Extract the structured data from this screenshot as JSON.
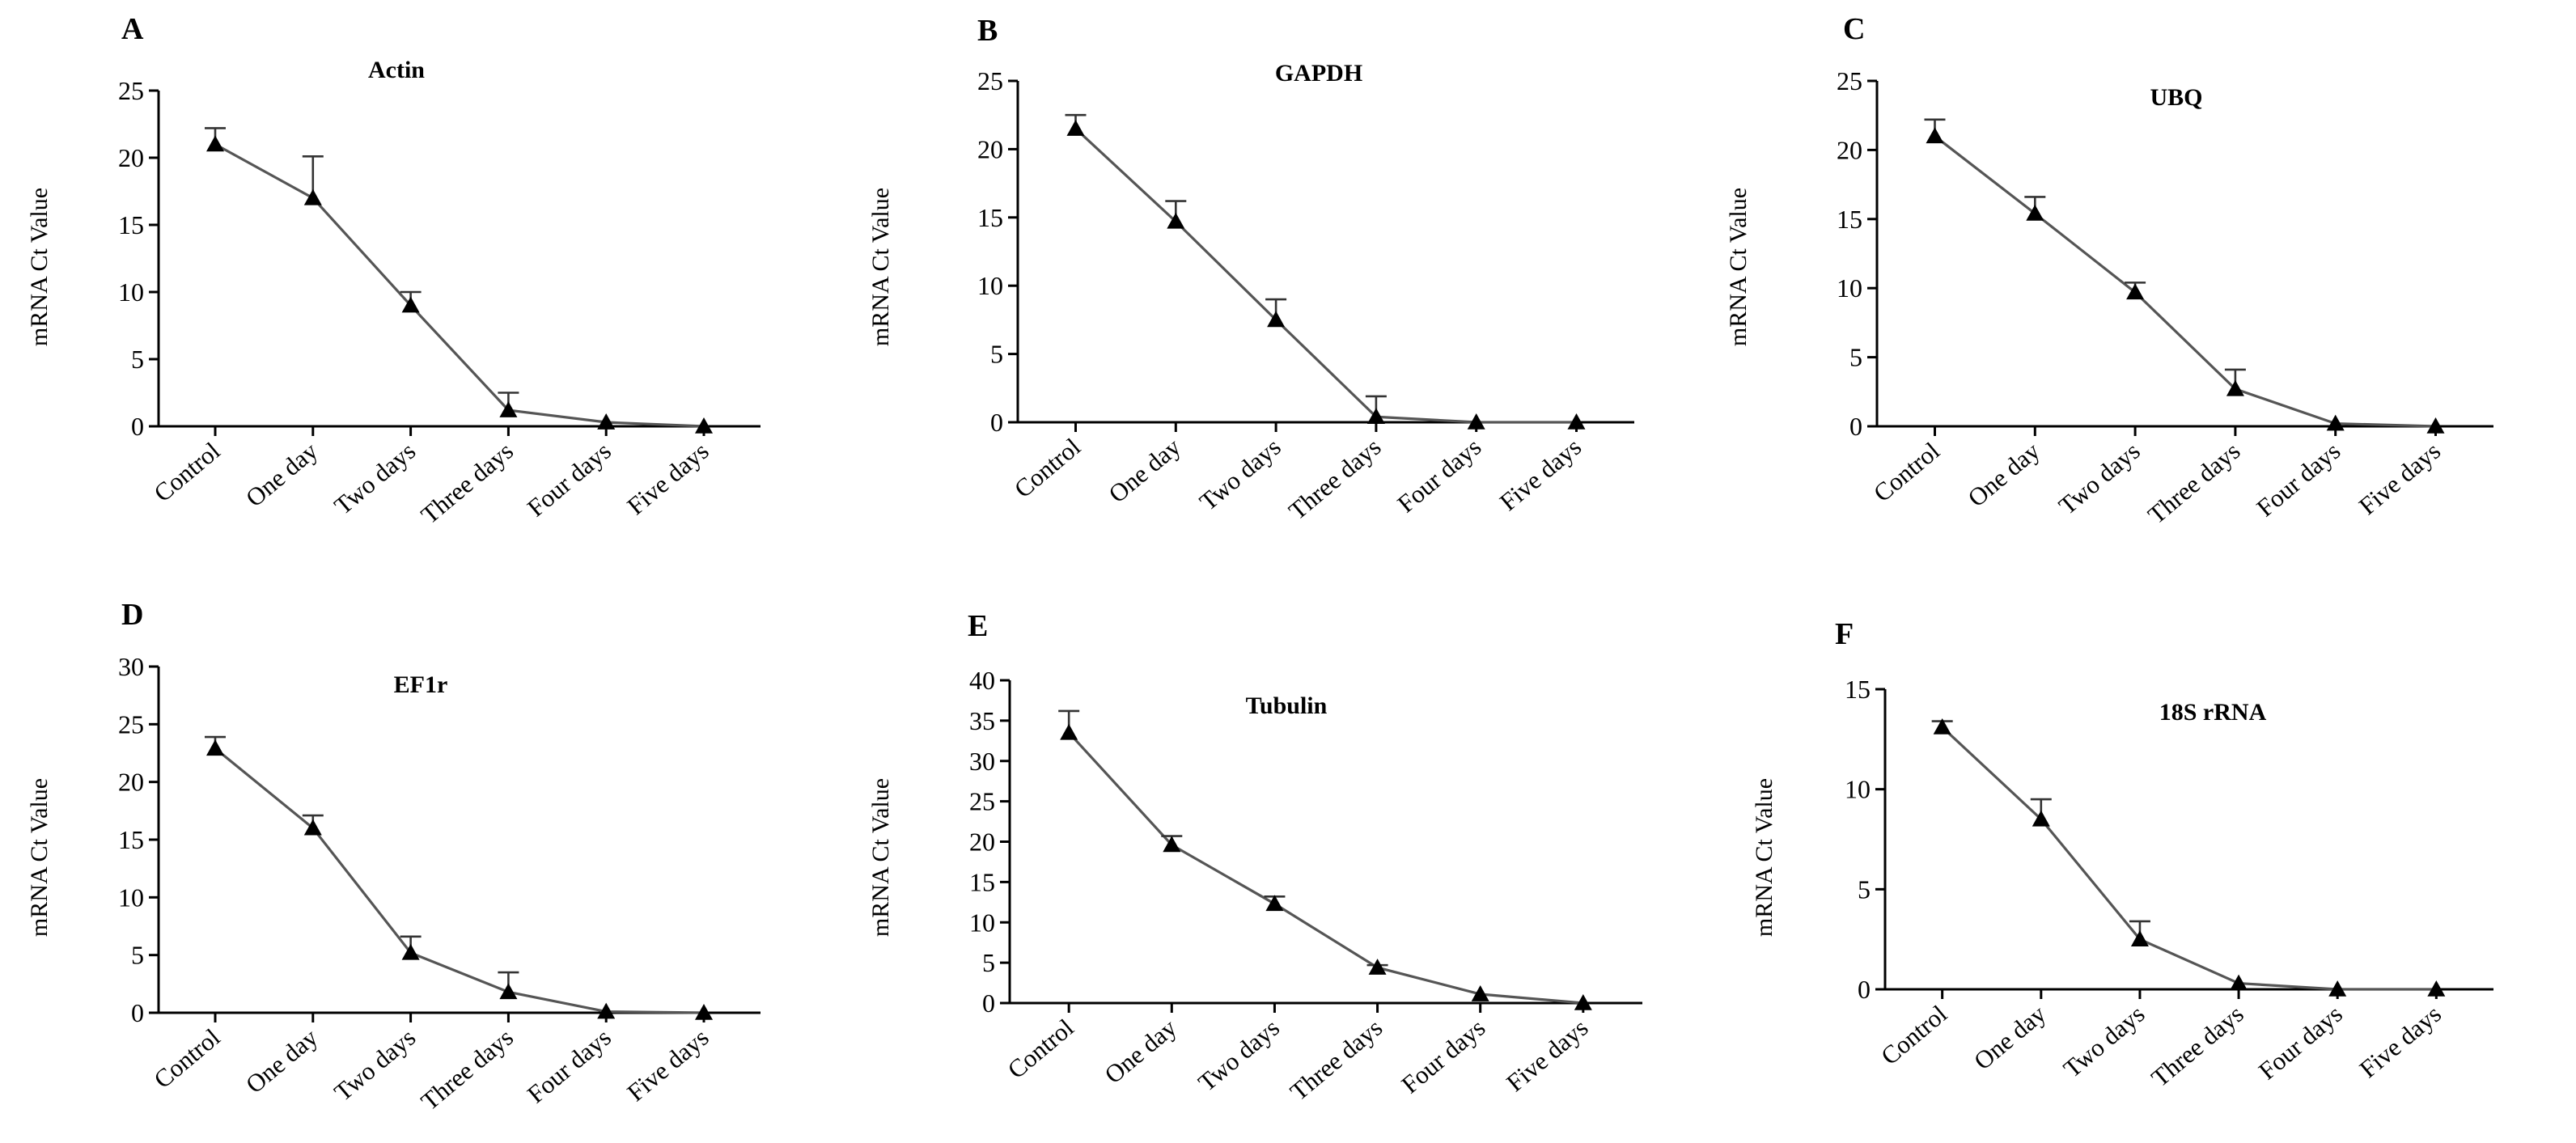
{
  "figure": {
    "ylabel": "mRNA Ct Value",
    "categories": [
      "Control",
      "One day",
      "Two days",
      "Three days",
      "Four days",
      "Five days"
    ]
  },
  "chart_data": [
    {
      "panel": "A",
      "title": "Actin",
      "type": "line",
      "categories": [
        "Control",
        "One day",
        "Two days",
        "Three days",
        "Four days",
        "Five days"
      ],
      "values": [
        21,
        17,
        9,
        1.2,
        0.3,
        0
      ],
      "errors": [
        1.2,
        3.1,
        1,
        1.3,
        0,
        0
      ],
      "ylim": [
        0,
        25
      ],
      "yticks": [
        0,
        5,
        10,
        15,
        20,
        25
      ],
      "xlabel": "",
      "ylabel": "mRNA Ct Value"
    },
    {
      "panel": "B",
      "title": "GAPDH",
      "type": "line",
      "categories": [
        "Control",
        "One day",
        "Two days",
        "Three days",
        "Four days",
        "Five days"
      ],
      "values": [
        21.5,
        14.7,
        7.5,
        0.4,
        0,
        0
      ],
      "errors": [
        1,
        1.5,
        1.5,
        1.5,
        0,
        0
      ],
      "ylim": [
        0,
        25
      ],
      "yticks": [
        0,
        5,
        10,
        15,
        20,
        25
      ],
      "xlabel": "",
      "ylabel": "mRNA Ct Value"
    },
    {
      "panel": "C",
      "title": "UBQ",
      "type": "line",
      "categories": [
        "Control",
        "One day",
        "Two days",
        "Three days",
        "Four days",
        "Five days"
      ],
      "values": [
        21,
        15.4,
        9.7,
        2.7,
        0.2,
        0
      ],
      "errors": [
        1.2,
        1.2,
        0.7,
        1.4,
        0,
        0
      ],
      "ylim": [
        0,
        25
      ],
      "yticks": [
        0,
        5,
        10,
        15,
        20,
        25
      ],
      "xlabel": "",
      "ylabel": "mRNA Ct Value"
    },
    {
      "panel": "D",
      "title": "EF1r",
      "type": "line",
      "categories": [
        "Control",
        "One day",
        "Two days",
        "Three days",
        "Four days",
        "Five days"
      ],
      "values": [
        22.9,
        16,
        5.2,
        1.8,
        0.1,
        0
      ],
      "errors": [
        1,
        1.1,
        1.4,
        1.7,
        0,
        0
      ],
      "ylim": [
        0,
        30
      ],
      "yticks": [
        0,
        5,
        10,
        15,
        20,
        25,
        30
      ],
      "xlabel": "",
      "ylabel": "mRNA Ct Value"
    },
    {
      "panel": "E",
      "title": "Tubulin",
      "type": "line",
      "categories": [
        "Control",
        "One day",
        "Two days",
        "Three days",
        "Four days",
        "Five days"
      ],
      "values": [
        33.5,
        19.6,
        12.3,
        4.4,
        1.1,
        0
      ],
      "errors": [
        2.7,
        1.1,
        0.9,
        0.3,
        0,
        0
      ],
      "ylim": [
        0,
        40
      ],
      "yticks": [
        0,
        5,
        10,
        15,
        20,
        25,
        30,
        35,
        40
      ],
      "xlabel": "",
      "ylabel": "mRNA Ct Value"
    },
    {
      "panel": "F",
      "title": "18S rRNA",
      "type": "line",
      "categories": [
        "Control",
        "One day",
        "Two days",
        "Three days",
        "Four days",
        "Five days"
      ],
      "values": [
        13.1,
        8.5,
        2.5,
        0.3,
        0,
        0
      ],
      "errors": [
        0.3,
        1,
        0.9,
        0,
        0,
        0
      ],
      "ylim": [
        0,
        15
      ],
      "yticks": [
        0,
        5,
        10,
        15
      ],
      "xlabel": "",
      "ylabel": "mRNA Ct Value"
    }
  ]
}
